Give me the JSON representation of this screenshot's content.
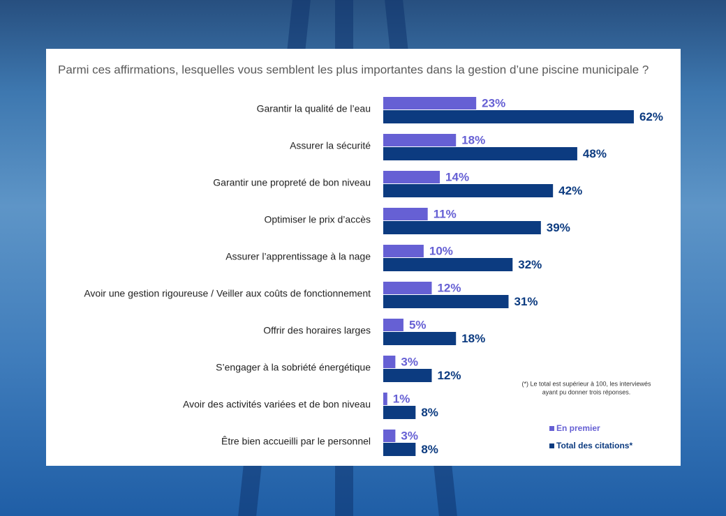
{
  "chart_data": {
    "type": "bar",
    "orientation": "horizontal",
    "title": "Parmi ces affirmations, lesquelles vous semblent les plus importantes dans la gestion d’une piscine municipale ?",
    "categories": [
      "Garantir la qualité de l’eau",
      "Assurer la sécurité",
      "Garantir une propreté de bon niveau",
      "Optimiser le prix d’accès",
      "Assurer l’apprentissage à la nage",
      "Avoir une gestion rigoureuse / Veiller aux coûts de fonctionnement",
      "Offrir des horaires larges",
      "S’engager à la sobriété énergétique",
      "Avoir des activités variées et de bon niveau",
      "Être bien accueilli par le personnel"
    ],
    "series": [
      {
        "name": "En premier",
        "color": "#6660d4",
        "values": [
          23,
          18,
          14,
          11,
          10,
          12,
          5,
          3,
          1,
          3
        ],
        "value_labels": [
          "23%",
          "18%",
          "14%",
          "11%",
          "10%",
          "12%",
          "5%",
          "3%",
          "1%",
          "3%"
        ]
      },
      {
        "name": "Total des citations*",
        "color": "#0c3b80",
        "values": [
          62,
          48,
          42,
          39,
          32,
          31,
          18,
          12,
          8,
          8
        ],
        "value_labels": [
          "62%",
          "48%",
          "42%",
          "39%",
          "32%",
          "31%",
          "18%",
          "12%",
          "8%",
          "8%"
        ]
      }
    ],
    "footnote": [
      "(*) Le total est supérieur à 100, les interviewés",
      "ayant pu donner trois réponses."
    ]
  }
}
